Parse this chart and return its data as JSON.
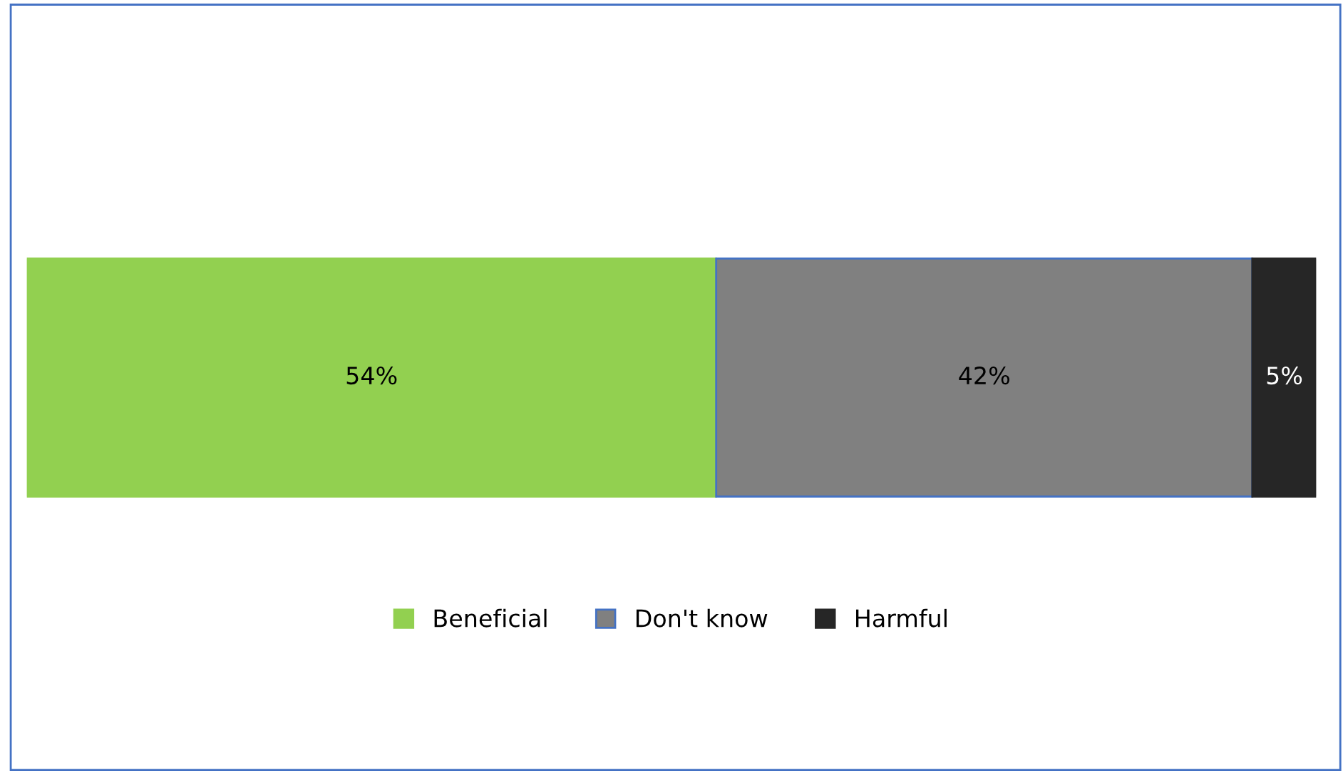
{
  "chart_data": {
    "type": "bar",
    "orientation": "horizontal",
    "stacked": true,
    "categories": [
      null
    ],
    "series": [
      {
        "name": "Beneficial",
        "color": "#92d050",
        "values": [
          54
        ],
        "value_labels": [
          "54%"
        ]
      },
      {
        "name": "Don't know",
        "color": "#808080",
        "values": [
          42
        ],
        "value_labels": [
          "42%"
        ]
      },
      {
        "name": "Harmful",
        "color": "#262626",
        "values": [
          5
        ],
        "value_labels": [
          "5%"
        ]
      }
    ],
    "legend": "bottom",
    "tick_labels": false
  }
}
